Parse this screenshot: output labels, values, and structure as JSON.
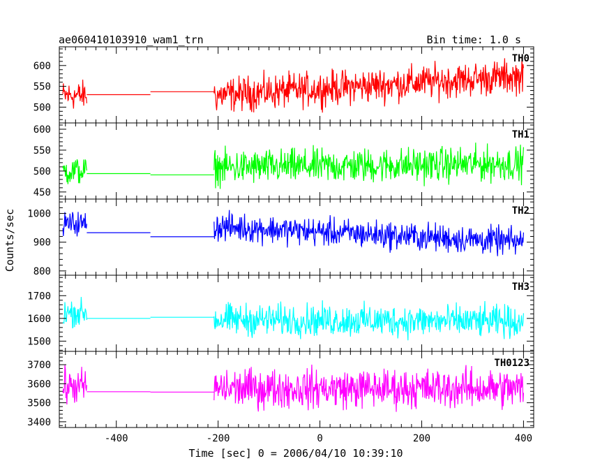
{
  "header": {
    "title": "ae060410103910_wam1_trn",
    "bin_time": "Bin time: 1.0 s"
  },
  "axes": {
    "xlabel": "Time [sec] 0 = 2006/04/10 10:39:10",
    "ylabel": "Counts/sec",
    "xlim": [
      -512,
      420
    ],
    "xticks": [
      -400,
      -200,
      0,
      200,
      400
    ]
  },
  "chart_data": {
    "type": "line",
    "gaps": [
      [
        -458,
        -208
      ]
    ],
    "series": [
      {
        "name": "TH0",
        "color": "#ff0000",
        "ylim": [
          462,
          645
        ],
        "yticks": [
          500,
          550,
          600
        ],
        "segments": [
          {
            "x": [
              -505,
              -458
            ],
            "y": [
              528,
              528
            ],
            "amp": 32
          },
          {
            "x": [
              -458,
              -333
            ],
            "y": [
              530,
              530
            ],
            "amp": 0
          },
          {
            "x": [
              -333,
              -208
            ],
            "y": [
              537,
              537
            ],
            "amp": 0
          },
          {
            "x": [
              -208,
              400
            ],
            "y": [
              528,
              575
            ],
            "amp": 38
          }
        ]
      },
      {
        "name": "TH1",
        "color": "#00ff00",
        "ylim": [
          433,
          615
        ],
        "yticks": [
          450,
          500,
          550,
          600
        ],
        "segments": [
          {
            "x": [
              -505,
              -458
            ],
            "y": [
              500,
              500
            ],
            "amp": 32
          },
          {
            "x": [
              -458,
              -333
            ],
            "y": [
              494,
              494
            ],
            "amp": 0
          },
          {
            "x": [
              -333,
              -208
            ],
            "y": [
              491,
              491
            ],
            "amp": 0
          },
          {
            "x": [
              -208,
              400
            ],
            "y": [
              508,
              518
            ],
            "amp": 38
          }
        ]
      },
      {
        "name": "TH2",
        "color": "#0000ff",
        "ylim": [
          785,
          1050
        ],
        "yticks": [
          800,
          900,
          1000
        ],
        "segments": [
          {
            "x": [
              -505,
              -458
            ],
            "y": [
              965,
              965
            ],
            "amp": 38
          },
          {
            "x": [
              -458,
              -333
            ],
            "y": [
              933,
              933
            ],
            "amp": 0
          },
          {
            "x": [
              -333,
              -208
            ],
            "y": [
              919,
              919
            ],
            "amp": 0
          },
          {
            "x": [
              -208,
              400
            ],
            "y": [
              955,
              900
            ],
            "amp": 45
          }
        ]
      },
      {
        "name": "TH3",
        "color": "#00ffff",
        "ylim": [
          1455,
          1790
        ],
        "yticks": [
          1500,
          1600,
          1700
        ],
        "segments": [
          {
            "x": [
              -505,
              -458
            ],
            "y": [
              1625,
              1625
            ],
            "amp": 55
          },
          {
            "x": [
              -458,
              -333
            ],
            "y": [
              1600,
              1600
            ],
            "amp": 0
          },
          {
            "x": [
              -333,
              -208
            ],
            "y": [
              1605,
              1605
            ],
            "amp": 0
          },
          {
            "x": [
              -208,
              400
            ],
            "y": [
              1595,
              1585
            ],
            "amp": 65
          }
        ]
      },
      {
        "name": "TH0123",
        "color": "#ff00ff",
        "ylim": [
          3370,
          3770
        ],
        "yticks": [
          3400,
          3500,
          3600,
          3700
        ],
        "segments": [
          {
            "x": [
              -505,
              -458
            ],
            "y": [
              3585,
              3585
            ],
            "amp": 85
          },
          {
            "x": [
              -458,
              -333
            ],
            "y": [
              3558,
              3558
            ],
            "amp": 0
          },
          {
            "x": [
              -333,
              -208
            ],
            "y": [
              3556,
              3556
            ],
            "amp": 0
          },
          {
            "x": [
              -208,
              400
            ],
            "y": [
              3575,
              3575
            ],
            "amp": 95
          }
        ]
      }
    ]
  }
}
